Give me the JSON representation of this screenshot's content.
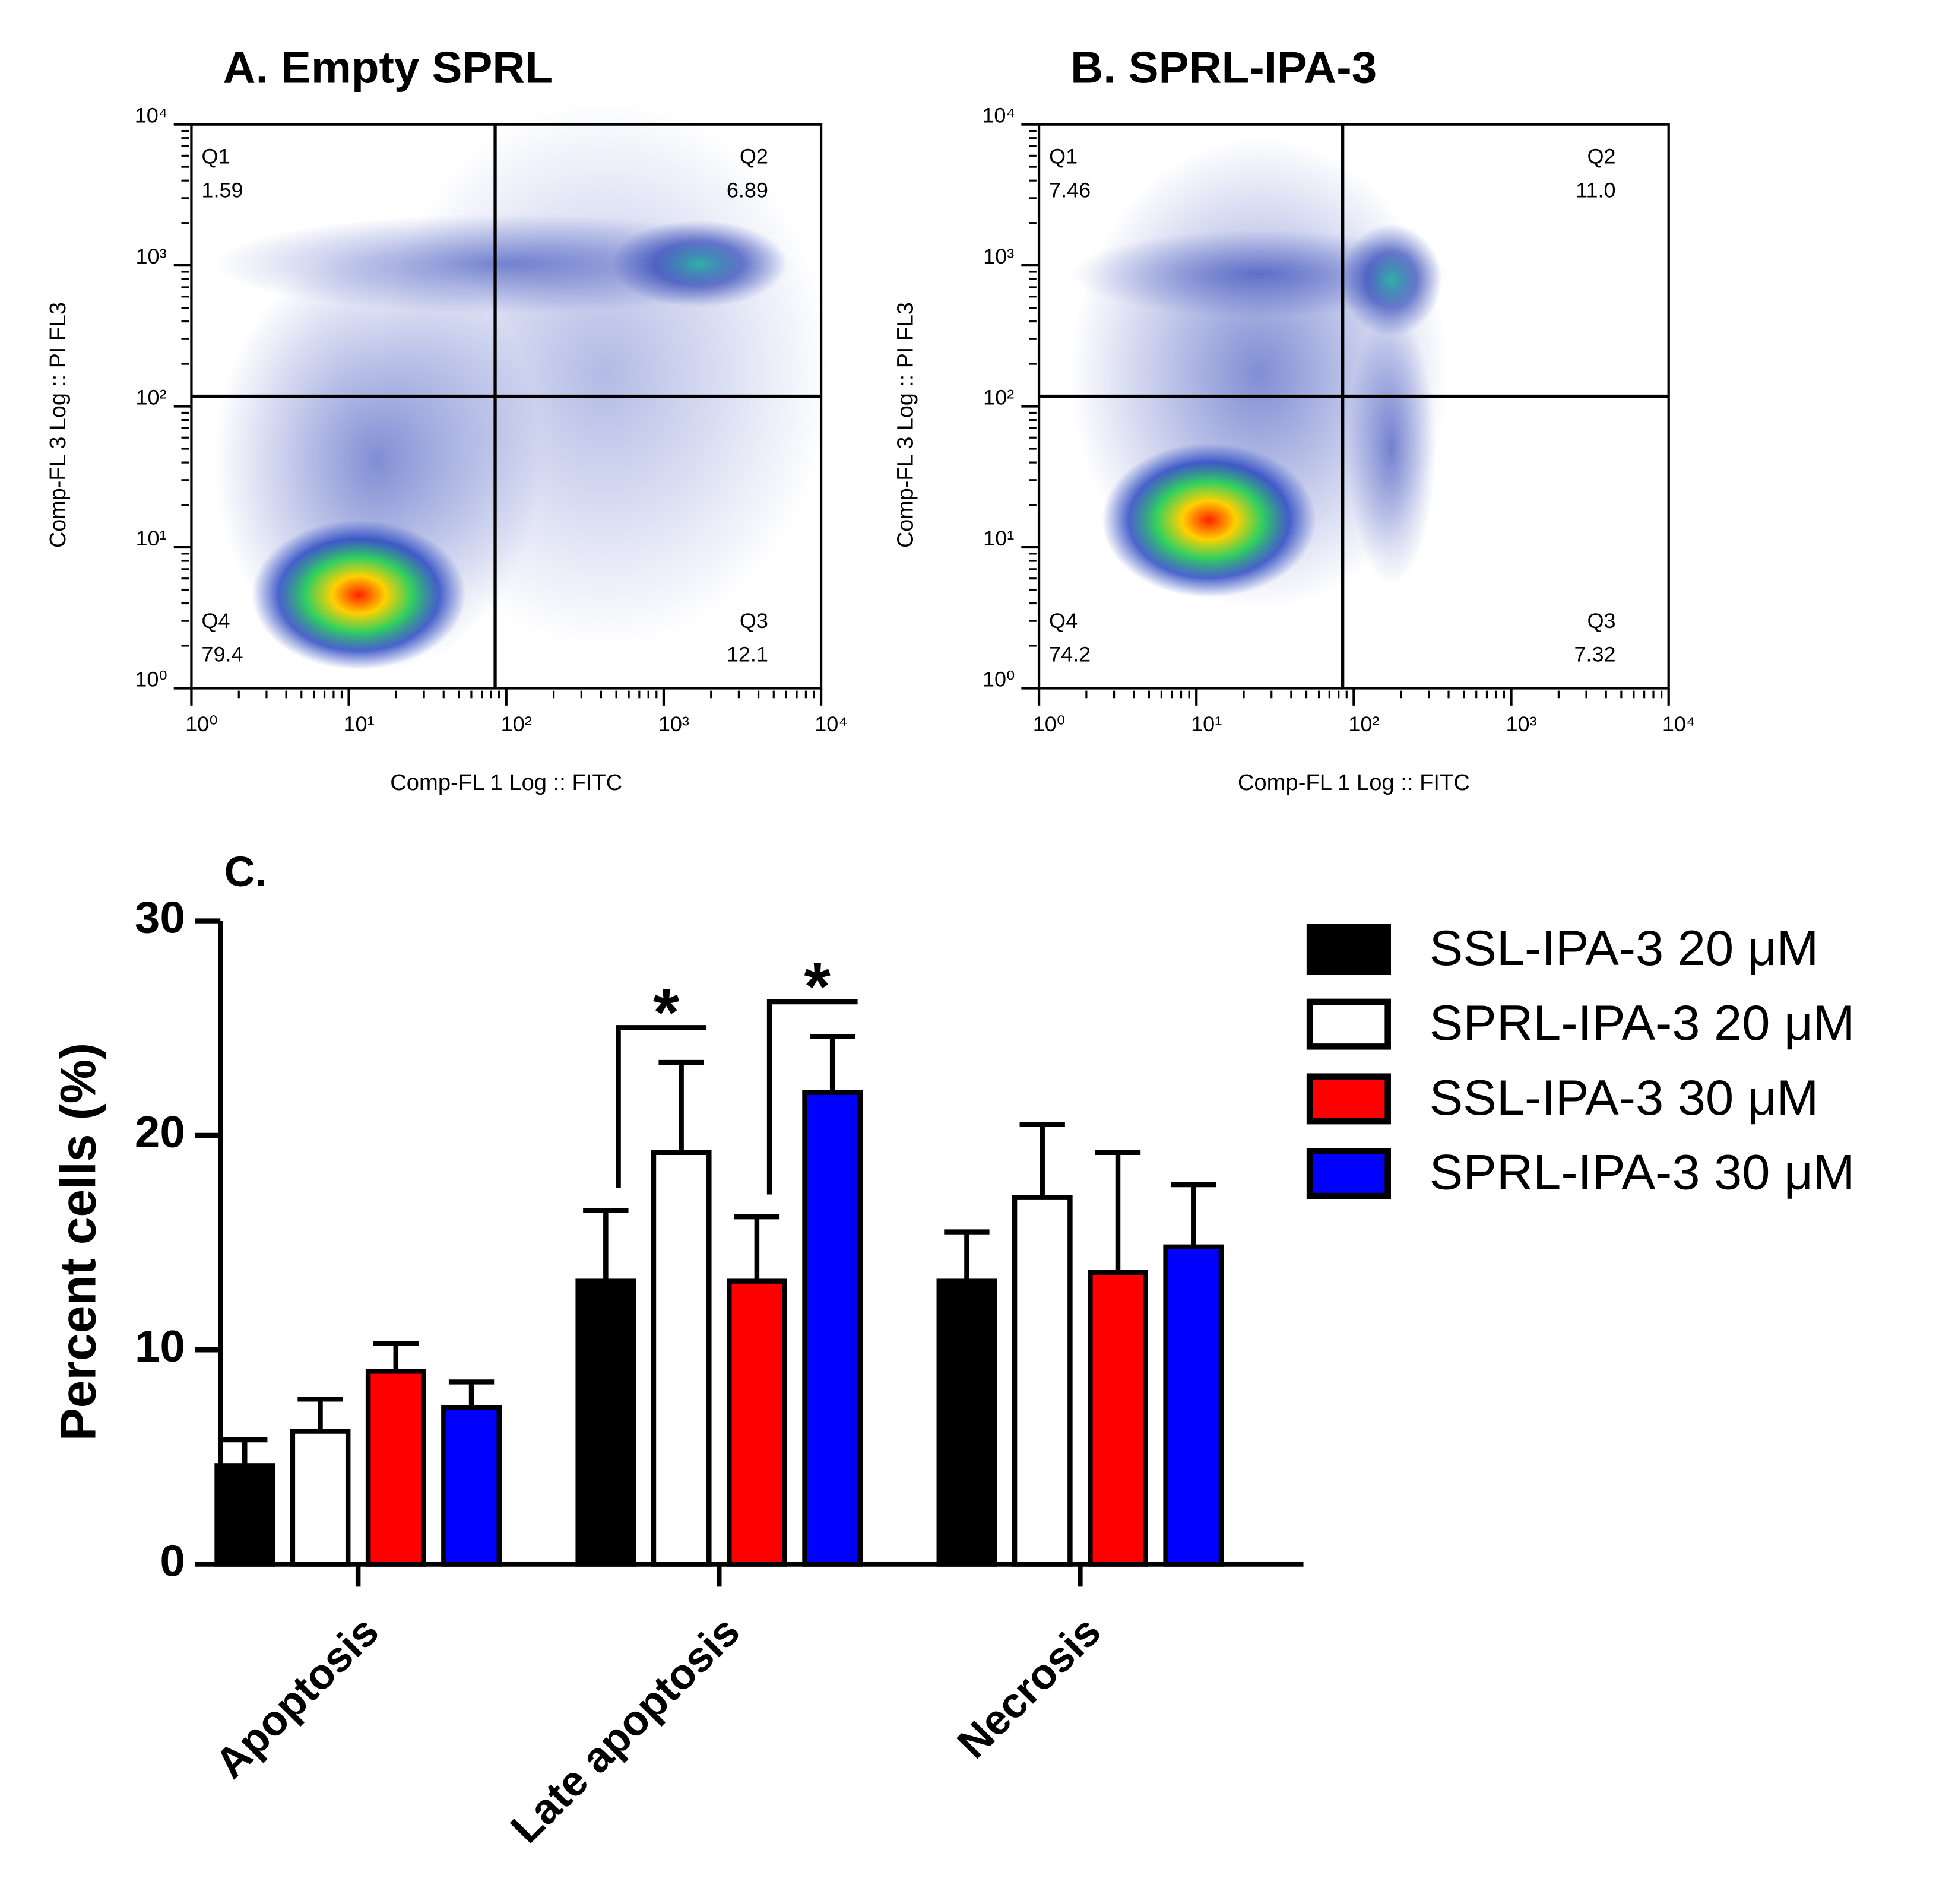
{
  "chart_data": [
    {
      "type": "scatter",
      "title": "A. Empty SPRL",
      "xlabel": "Comp-FL 1 Log :: FITC",
      "ylabel": "Comp-FL 3 Log :: PI FL3",
      "xscale": "log",
      "yscale": "log",
      "xlim": [
        1,
        10000
      ],
      "ylim": [
        1,
        10000
      ],
      "xticks": [
        {
          "value": 1,
          "label": "10⁰"
        },
        {
          "value": 10,
          "label": "10¹"
        },
        {
          "value": 100,
          "label": "10²"
        },
        {
          "value": 1000,
          "label": "10³"
        },
        {
          "value": 10000,
          "label": "10⁴"
        }
      ],
      "yticks": [
        {
          "value": 1,
          "label": "10⁰"
        },
        {
          "value": 10,
          "label": "10¹"
        },
        {
          "value": 100,
          "label": "10²"
        },
        {
          "value": 1000,
          "label": "10³"
        },
        {
          "value": 10000,
          "label": "10⁴"
        }
      ],
      "gates": {
        "x": 85,
        "y": 118
      },
      "categories": [
        "Q1",
        "Q2",
        "Q3",
        "Q4"
      ],
      "values": [
        1.59,
        6.89,
        12.1,
        79.4
      ]
    },
    {
      "type": "scatter",
      "title": "B. SPRL-IPA-3",
      "xlabel": "Comp-FL 1 Log :: FITC",
      "ylabel": "Comp-FL 3 Log :: PI FL3",
      "xscale": "log",
      "yscale": "log",
      "xlim": [
        1,
        10000
      ],
      "ylim": [
        1,
        10000
      ],
      "xticks": [
        {
          "value": 1,
          "label": "10⁰"
        },
        {
          "value": 10,
          "label": "10¹"
        },
        {
          "value": 100,
          "label": "10²"
        },
        {
          "value": 1000,
          "label": "10³"
        },
        {
          "value": 10000,
          "label": "10⁴"
        }
      ],
      "yticks": [
        {
          "value": 1,
          "label": "10⁰"
        },
        {
          "value": 10,
          "label": "10¹"
        },
        {
          "value": 100,
          "label": "10²"
        },
        {
          "value": 1000,
          "label": "10³"
        },
        {
          "value": 10000,
          "label": "10⁴"
        }
      ],
      "gates": {
        "x": 85,
        "y": 118
      },
      "categories": [
        "Q1",
        "Q2",
        "Q3",
        "Q4"
      ],
      "values": [
        7.46,
        11.0,
        7.32,
        74.2
      ],
      "value_labels": [
        "7.46",
        "11.0",
        "7.32",
        "74.2"
      ]
    },
    {
      "type": "bar",
      "title": "C.",
      "ylabel": "Percent cells (%)",
      "categories": [
        "Apoptosis",
        "Late apoptosis",
        "Necrosis"
      ],
      "ylim": [
        0,
        30
      ],
      "yticks": [
        0,
        10,
        20,
        30
      ],
      "legend": "right",
      "series": [
        {
          "name": "SSL-IPA-3 20 μM",
          "color": "#000000",
          "values": [
            4.6,
            13.2,
            13.2
          ],
          "errors": [
            1.2,
            3.3,
            2.3
          ]
        },
        {
          "name": "SPRL-IPA-3 20 μM",
          "color": "#ffffff",
          "values": [
            6.2,
            19.2,
            17.1
          ],
          "errors": [
            1.5,
            4.2,
            3.4
          ]
        },
        {
          "name": "SSL-IPA-3 30 μM",
          "color": "#ff0000",
          "values": [
            9.0,
            13.2,
            13.6
          ],
          "errors": [
            1.3,
            3.0,
            5.6
          ]
        },
        {
          "name": "SPRL-IPA-3 30 μM",
          "color": "#0000ff",
          "values": [
            7.3,
            22.0,
            14.8
          ],
          "errors": [
            1.2,
            2.6,
            2.9
          ]
        }
      ],
      "annotations": [
        {
          "text": "*",
          "category": 1,
          "series": [
            0,
            1
          ]
        },
        {
          "text": "*",
          "category": 1,
          "series": [
            2,
            3
          ]
        }
      ]
    }
  ]
}
